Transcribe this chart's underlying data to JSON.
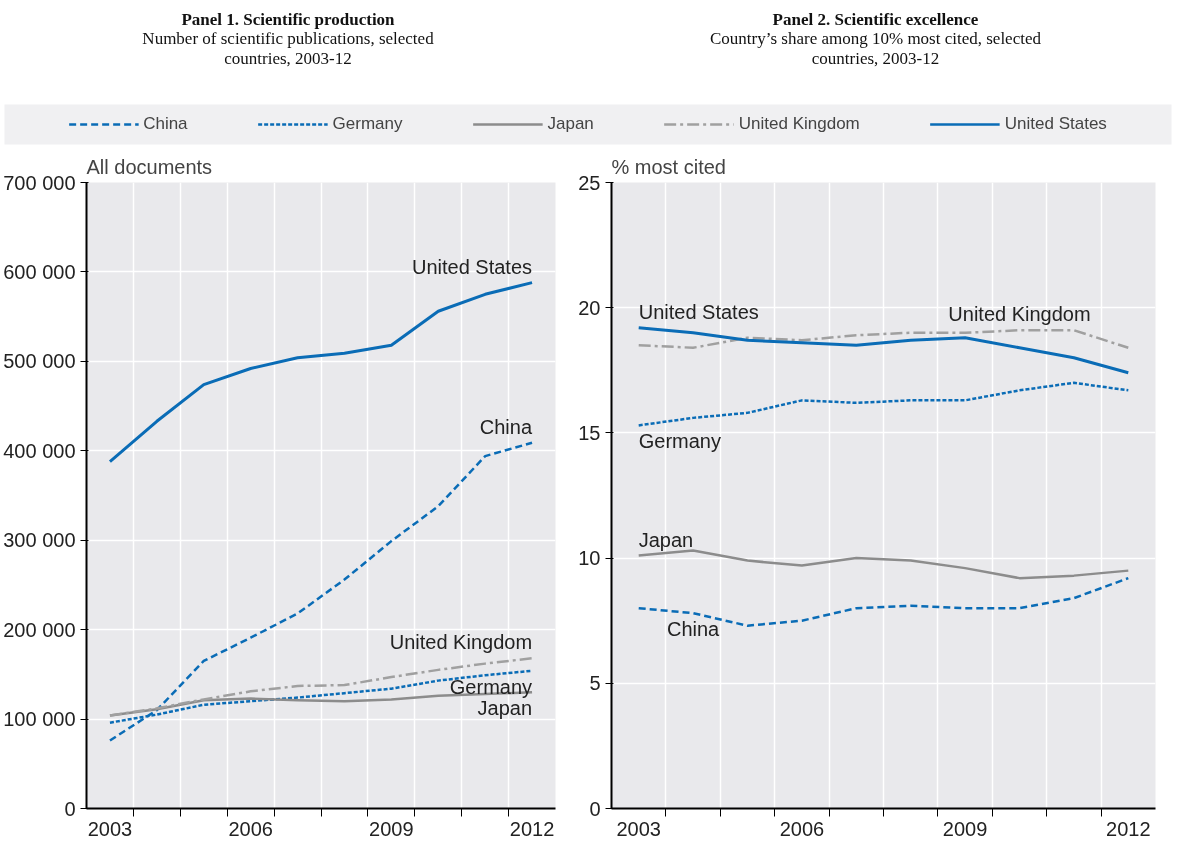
{
  "chart_data": [
    {
      "type": "line",
      "title": "Panel 1. Scientific production",
      "subtitle": "Number of scientific publications, selected countries, 2003-12",
      "ylabel": "All documents",
      "x": [
        2003,
        2004,
        2005,
        2006,
        2007,
        2008,
        2009,
        2010,
        2011,
        2012
      ],
      "xlim": [
        2002.5,
        2012.5
      ],
      "xticks": [
        {
          "value": 2003,
          "label": "2003"
        },
        {
          "value": 2003.5,
          "label": null
        },
        {
          "value": 2004.5,
          "label": null
        },
        {
          "value": 2005.5,
          "label": null
        },
        {
          "value": 2006,
          "label": "2006"
        },
        {
          "value": 2006.5,
          "label": null
        },
        {
          "value": 2007.5,
          "label": null
        },
        {
          "value": 2008.5,
          "label": null
        },
        {
          "value": 2009,
          "label": "2009"
        },
        {
          "value": 2009.5,
          "label": null
        },
        {
          "value": 2010.5,
          "label": null
        },
        {
          "value": 2011.5,
          "label": null
        },
        {
          "value": 2012,
          "label": "2012"
        }
      ],
      "ylim": [
        0,
        700000
      ],
      "yticks": [
        0,
        {
          "value": 100000,
          "label": "100 000"
        },
        {
          "value": 200000,
          "label": "200 000"
        },
        {
          "value": 300000,
          "label": "300 000"
        },
        {
          "value": 400000,
          "label": "400 000"
        },
        {
          "value": 500000,
          "label": "500 000"
        },
        {
          "value": 600000,
          "label": "600 000"
        },
        {
          "value": 700000,
          "label": "700 000"
        }
      ],
      "grid": true,
      "legend": "top",
      "series": [
        {
          "name": "China",
          "color": "#0a6cb6",
          "line_style": "dashed",
          "values": [
            76000,
            110000,
            165000,
            191000,
            218000,
            256000,
            299000,
            338000,
            394000,
            409000
          ]
        },
        {
          "name": "Germany",
          "color": "#0a6cb6",
          "line_style": "dotted",
          "values": [
            96000,
            105000,
            116000,
            120000,
            124000,
            129000,
            134000,
            143000,
            149000,
            154000
          ]
        },
        {
          "name": "Japan",
          "color": "#8c8c8c",
          "line_style": "solid",
          "values": [
            104000,
            111000,
            121000,
            123000,
            121000,
            120000,
            122000,
            126000,
            128000,
            130000
          ]
        },
        {
          "name": "United Kingdom",
          "color": "#a0a0a0",
          "line_style": "dashdot",
          "values": [
            104000,
            112000,
            122000,
            131000,
            137000,
            138000,
            147000,
            155000,
            162000,
            168000
          ]
        },
        {
          "name": "United States",
          "color": "#0a6cb6",
          "line_style": "solid",
          "values": [
            388000,
            433000,
            474000,
            492000,
            504000,
            509000,
            518000,
            556000,
            575000,
            588000
          ]
        }
      ],
      "annotations": [
        {
          "text": "United States",
          "x": 2012,
          "y": 588000
        },
        {
          "text": "China",
          "x": 2012,
          "y": 409000
        },
        {
          "text": "United Kingdom",
          "x": 2012,
          "y": 168000
        },
        {
          "text": "Germany",
          "x": 2012,
          "y": 154000
        },
        {
          "text": "Japan",
          "x": 2012,
          "y": 130000
        }
      ]
    },
    {
      "type": "line",
      "title": "Panel 2. Scientific excellence",
      "subtitle": "Country’s share among 10% most cited, selected countries, 2003-12",
      "ylabel": "%  most cited",
      "x": [
        2003,
        2004,
        2005,
        2006,
        2007,
        2008,
        2009,
        2010,
        2011,
        2012
      ],
      "xlim": [
        2002.5,
        2012.5
      ],
      "xticks": [
        {
          "value": 2003,
          "label": "2003"
        },
        {
          "value": 2003.5,
          "label": null
        },
        {
          "value": 2004.5,
          "label": null
        },
        {
          "value": 2005.5,
          "label": null
        },
        {
          "value": 2006,
          "label": "2006"
        },
        {
          "value": 2006.5,
          "label": null
        },
        {
          "value": 2007.5,
          "label": null
        },
        {
          "value": 2008.5,
          "label": null
        },
        {
          "value": 2009,
          "label": "2009"
        },
        {
          "value": 2009.5,
          "label": null
        },
        {
          "value": 2010.5,
          "label": null
        },
        {
          "value": 2011.5,
          "label": null
        },
        {
          "value": 2012,
          "label": "2012"
        }
      ],
      "ylim": [
        0,
        25
      ],
      "yticks": [
        0,
        5,
        10,
        15,
        20,
        25
      ],
      "grid": true,
      "series": [
        {
          "color": "#0a6cb6",
          "line_style": "dashed",
          "values": [
            8.0,
            7.8,
            7.3,
            7.5,
            8.0,
            8.1,
            8.0,
            8.0,
            8.4,
            9.2
          ]
        },
        {
          "color": "#0a6cb6",
          "line_style": "dotted",
          "values": [
            15.3,
            15.6,
            15.8,
            16.3,
            16.2,
            16.3,
            16.3,
            16.7,
            17.0,
            16.7
          ]
        },
        {
          "color": "#8c8c8c",
          "line_style": "solid",
          "values": [
            10.1,
            10.3,
            9.9,
            9.7,
            10.0,
            9.9,
            9.6,
            9.2,
            9.3,
            9.5
          ]
        },
        {
          "color": "#a0a0a0",
          "line_style": "dashdot",
          "values": [
            18.5,
            18.4,
            18.8,
            18.7,
            18.9,
            19.0,
            19.0,
            19.1,
            19.1,
            18.4
          ]
        },
        {
          "color": "#0a6cb6",
          "line_style": "solid",
          "values": [
            19.2,
            19.0,
            18.7,
            18.6,
            18.5,
            18.7,
            18.8,
            18.4,
            18.0,
            17.4
          ]
        }
      ],
      "annotations": [
        {
          "text": "United States",
          "x": 2003,
          "y": 19.2
        },
        {
          "text": "United Kingdom",
          "x": 2010,
          "y": 19.1
        },
        {
          "text": "Germany",
          "x": 2003,
          "y": 15.3
        },
        {
          "text": "Japan",
          "x": 2003,
          "y": 10.1
        },
        {
          "text": "China",
          "x": 2004,
          "y": 7.8
        }
      ]
    }
  ]
}
